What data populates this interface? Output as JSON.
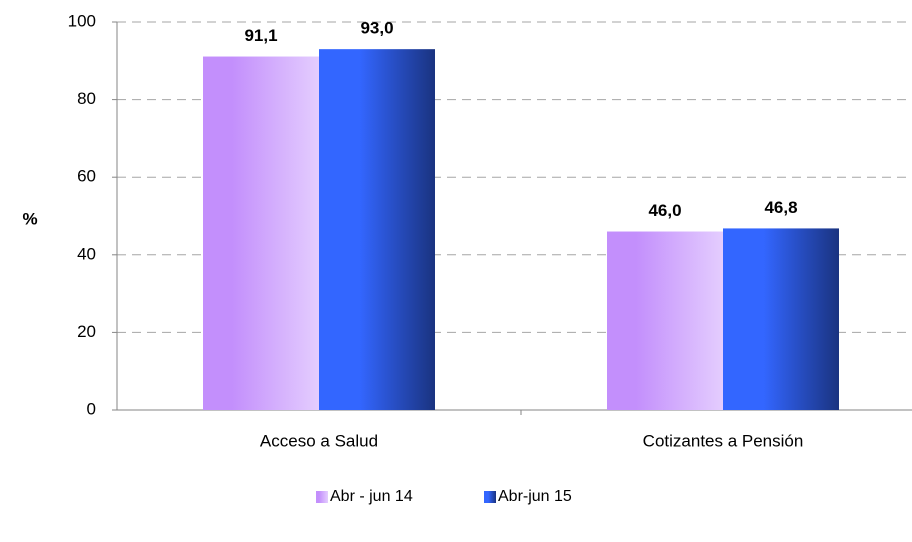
{
  "chart_data": {
    "type": "bar",
    "y_label": "%",
    "categories": [
      "Acceso a Salud",
      "Cotizantes a Pensión"
    ],
    "series": [
      {
        "name": "Abr - jun 14",
        "color": "#c38ffc",
        "values": [
          91.1,
          46.0
        ],
        "value_labels": [
          "91,1",
          "46,0"
        ]
      },
      {
        "name": "Abr-jun 15",
        "color": "#3366ff",
        "values": [
          93.0,
          46.8
        ],
        "value_labels": [
          "93,0",
          "46,8"
        ]
      }
    ],
    "ylim": [
      0,
      100
    ],
    "yticks": [
      0,
      20,
      40,
      60,
      80,
      100
    ],
    "grid": true,
    "legend": "bottom"
  }
}
